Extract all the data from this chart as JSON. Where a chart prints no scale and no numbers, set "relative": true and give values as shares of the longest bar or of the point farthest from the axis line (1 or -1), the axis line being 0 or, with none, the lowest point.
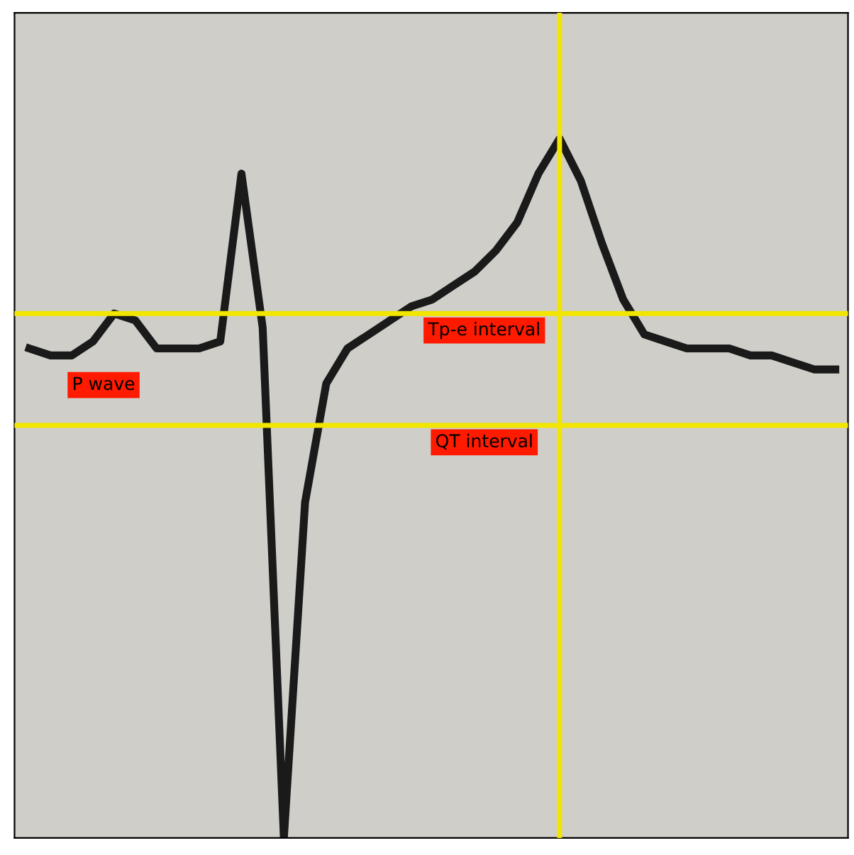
{
  "chart_data": {
    "type": "line",
    "relative": true,
    "categories": [
      null,
      null,
      null,
      null,
      null,
      null,
      null,
      null,
      null,
      null,
      null,
      null,
      null,
      null,
      null,
      null,
      null,
      null,
      null,
      null,
      null,
      null,
      null,
      null,
      null,
      null,
      null,
      null,
      null,
      null,
      null,
      null,
      null,
      null,
      null,
      null,
      null,
      null,
      null
    ],
    "series": [
      {
        "color": "#1a1a1a",
        "values": [
          0.7,
          0.69,
          0.69,
          0.71,
          0.75,
          0.74,
          0.7,
          0.7,
          0.7,
          0.71,
          0.95,
          0.73,
          0,
          0.48,
          0.65,
          0.7,
          0.72,
          0.74,
          0.76,
          0.77,
          0.79,
          0.81,
          0.84,
          0.88,
          0.95,
          1,
          0.94,
          0.85,
          0.77,
          0.72,
          0.71,
          0.7,
          0.7,
          0.7,
          0.69,
          0.69,
          0.68,
          0.67,
          0.67
        ]
      }
    ],
    "ref_lines": [
      {
        "axis": "y",
        "value": 0.59,
        "label": "QT interval",
        "color": "#f2e600"
      },
      {
        "axis": "y",
        "value": 0.75,
        "label": "Tp-e interval",
        "color": "#f2e600"
      }
    ],
    "annotations": [
      "P wave"
    ],
    "marker": "none",
    "line_style": "solid",
    "legend": false
  }
}
